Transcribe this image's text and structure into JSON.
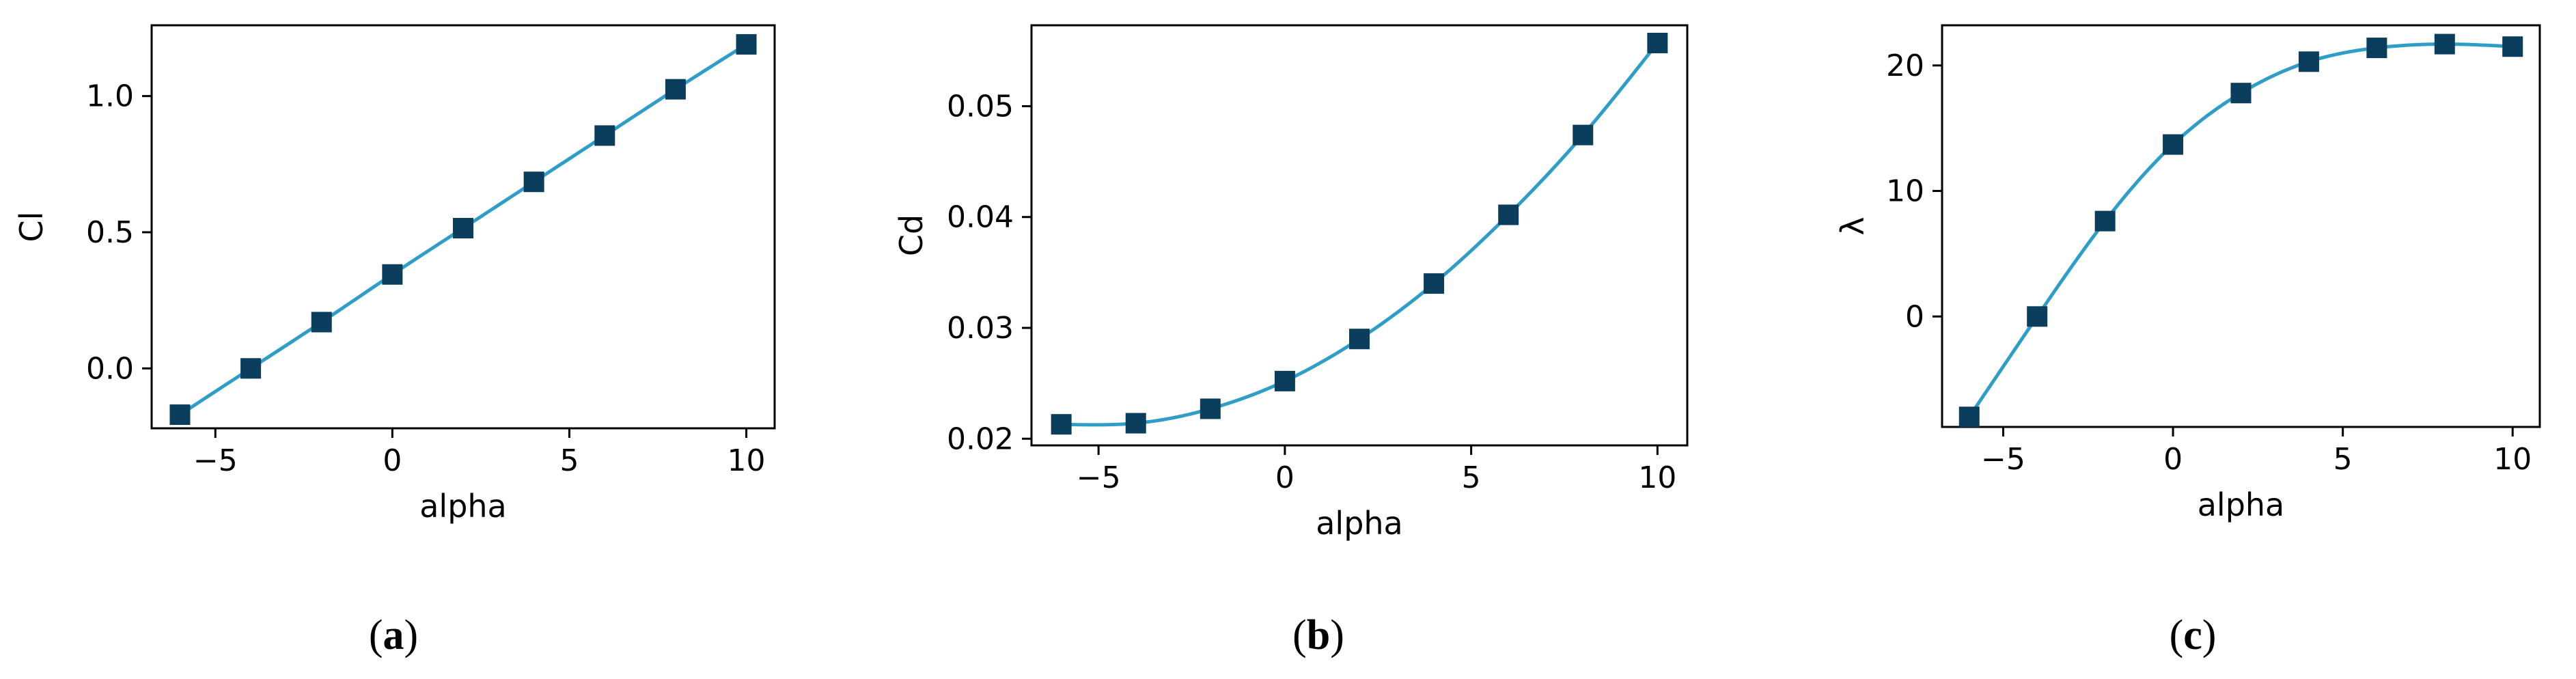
{
  "colors": {
    "line": "#2e9ec9",
    "marker": "#0b3d5c",
    "axis": "#000000",
    "background": "#ffffff"
  },
  "chart_data": [
    {
      "type": "line",
      "marker": "square",
      "caption": {
        "open": "(",
        "letter": "a",
        "close": ")"
      },
      "xlabel": "alpha",
      "ylabel": "Cl",
      "xlim": [
        -6.8,
        10.8
      ],
      "ylim": [
        -0.22,
        1.26
      ],
      "xticks": [
        -5,
        0,
        5,
        10
      ],
      "xtick_labels": [
        "−5",
        "0",
        "5",
        "10"
      ],
      "yticks": [
        0.0,
        0.5,
        1.0
      ],
      "ytick_labels": [
        "0.0",
        "0.5",
        "1.0"
      ],
      "grid": false,
      "series": [
        {
          "x": [
            -6,
            -4,
            -2,
            0,
            2,
            4,
            6,
            8,
            10
          ],
          "y": [
            -0.17,
            0.0,
            0.17,
            0.345,
            0.515,
            0.685,
            0.855,
            1.025,
            1.19
          ]
        }
      ]
    },
    {
      "type": "line",
      "marker": "square",
      "caption": {
        "open": "(",
        "letter": "b",
        "close": ")"
      },
      "xlabel": "alpha",
      "ylabel": "Cd",
      "xlim": [
        -6.8,
        10.8
      ],
      "ylim": [
        0.0194,
        0.0573
      ],
      "xticks": [
        -5,
        0,
        5,
        10
      ],
      "xtick_labels": [
        "−5",
        "0",
        "5",
        "10"
      ],
      "yticks": [
        0.02,
        0.03,
        0.04,
        0.05
      ],
      "ytick_labels": [
        "0.02",
        "0.03",
        "0.04",
        "0.05"
      ],
      "grid": false,
      "series": [
        {
          "x": [
            -6,
            -4,
            -2,
            0,
            2,
            4,
            6,
            8,
            10
          ],
          "y": [
            0.0213,
            0.0214,
            0.0227,
            0.0252,
            0.029,
            0.034,
            0.0402,
            0.0474,
            0.0557
          ]
        }
      ]
    },
    {
      "type": "line",
      "marker": "square",
      "caption": {
        "open": "(",
        "letter": "c",
        "close": ")"
      },
      "xlabel": "alpha",
      "ylabel": "λ",
      "xlim": [
        -6.8,
        10.8
      ],
      "ylim": [
        -8.8,
        23.2
      ],
      "xticks": [
        -5,
        0,
        5,
        10
      ],
      "xtick_labels": [
        "−5",
        "0",
        "5",
        "10"
      ],
      "yticks": [
        0,
        10,
        20
      ],
      "ytick_labels": [
        "0",
        "10",
        "20"
      ],
      "grid": false,
      "series": [
        {
          "x": [
            -6,
            -4,
            -2,
            0,
            2,
            4,
            6,
            8,
            10
          ],
          "y": [
            -8.0,
            0.0,
            7.6,
            13.7,
            17.8,
            20.3,
            21.4,
            21.7,
            21.5
          ]
        }
      ]
    }
  ]
}
